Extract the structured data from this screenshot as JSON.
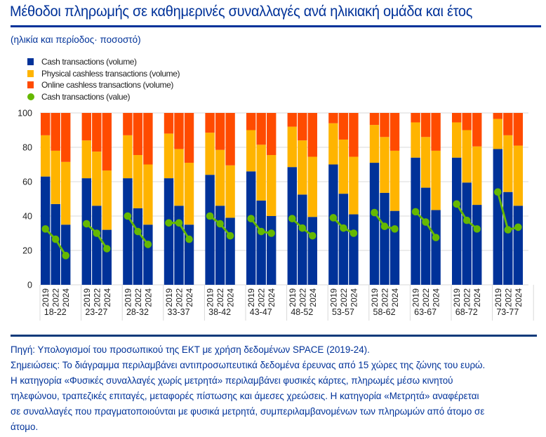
{
  "header": {
    "title": "Μέθοδοι πληρωμής σε καθημερινές συναλλαγές ανά ηλικιακή ομάδα και έτος",
    "subtitle": "(ηλικία και περίοδος· ποσοστό)"
  },
  "colors": {
    "cash_volume": "#003299",
    "physical_cashless": "#FFB400",
    "online_cashless": "#FF4B00",
    "cash_value": "#65B800",
    "accent": "#003299"
  },
  "legend": [
    {
      "label": "Cash transactions (volume)",
      "marker": "square",
      "color": "#003299"
    },
    {
      "label": "Physical cashless transactions (volume)",
      "marker": "square",
      "color": "#FFB400"
    },
    {
      "label": "Online cashless transactions (volume)",
      "marker": "square",
      "color": "#FF4B00"
    },
    {
      "label": "Cash transactions (value)",
      "marker": "dot",
      "color": "#65B800"
    }
  ],
  "chart_data": {
    "type": "bar",
    "stacked": true,
    "title": "Μέθοδοι πληρωμής σε καθημερινές συναλλαγές ανά ηλικιακή ομάδα και έτος",
    "subtitle": "(ηλικία και περίοδος· ποσοστό)",
    "xlabel": "",
    "ylabel": "",
    "ylim": [
      0,
      100
    ],
    "yticks": [
      0,
      20,
      40,
      60,
      80,
      100
    ],
    "grid": true,
    "legend_position": "top-left",
    "groups": [
      "18-22",
      "23-27",
      "28-32",
      "33-37",
      "38-42",
      "43-47",
      "48-52",
      "53-57",
      "58-62",
      "63-67",
      "68-72",
      "73-77"
    ],
    "years": [
      "2019",
      "2022",
      "2024"
    ],
    "series": [
      {
        "name": "Cash transactions (volume)",
        "kind": "bar",
        "values": [
          [
            63,
            47,
            35
          ],
          [
            62,
            46,
            32
          ],
          [
            62,
            44.5,
            35
          ],
          [
            62,
            46,
            35
          ],
          [
            64,
            46,
            39
          ],
          [
            66,
            49,
            40
          ],
          [
            68.5,
            52.5,
            39.5
          ],
          [
            70,
            53,
            41
          ],
          [
            71,
            53.5,
            43
          ],
          [
            74,
            56.5,
            43.5
          ],
          [
            74,
            59.5,
            46.5
          ],
          [
            79,
            54,
            46
          ]
        ]
      },
      {
        "name": "Physical cashless transactions (volume)",
        "kind": "bar",
        "values": [
          [
            24,
            31,
            36.5
          ],
          [
            22,
            31.5,
            34.5
          ],
          [
            25,
            31,
            35
          ],
          [
            26,
            33,
            36
          ],
          [
            24.5,
            32.5,
            30.5
          ],
          [
            24,
            32.5,
            35.5
          ],
          [
            23.5,
            31.5,
            35
          ],
          [
            24,
            31.5,
            33.5
          ],
          [
            22,
            32.5,
            35
          ],
          [
            20.5,
            29.5,
            34.5
          ],
          [
            20.5,
            30.5,
            34
          ],
          [
            17.5,
            33,
            35
          ]
        ]
      },
      {
        "name": "Online cashless transactions (volume)",
        "kind": "bar",
        "values": [
          [
            13,
            22,
            28.5
          ],
          [
            16,
            22.5,
            33.5
          ],
          [
            13,
            24.5,
            30
          ],
          [
            12,
            21,
            29
          ],
          [
            11.5,
            21.5,
            30.5
          ],
          [
            10,
            18.5,
            24.5
          ],
          [
            8,
            16,
            25.5
          ],
          [
            6,
            15.5,
            25.5
          ],
          [
            7,
            14,
            22
          ],
          [
            5.5,
            14,
            22
          ],
          [
            5.5,
            10,
            19.5
          ],
          [
            3.5,
            13,
            19
          ]
        ]
      },
      {
        "name": "Cash transactions (value)",
        "kind": "line-markers",
        "values": [
          [
            32.5,
            26.5,
            17
          ],
          [
            35.5,
            30,
            21
          ],
          [
            40,
            31,
            23.5
          ],
          [
            36,
            36,
            26.5
          ],
          [
            40,
            35.5,
            28.5
          ],
          [
            38.5,
            31,
            30
          ],
          [
            38.5,
            33,
            28.5
          ],
          [
            39,
            33,
            30
          ],
          [
            42,
            34,
            32.5
          ],
          [
            42.5,
            36.5,
            27.5
          ],
          [
            47,
            37.5,
            32.5
          ],
          [
            54,
            32,
            33.5
          ]
        ]
      }
    ]
  },
  "footer": {
    "source": "Πηγή: Υπολογισμοί του προσωπικού της ΕΚΤ με χρήση δεδομένων SPACE (2019-24).",
    "notes_lines": [
      "Σημειώσεις: Το διάγραμμα περιλαμβάνει αντιπροσωπευτικά δεδομένα έρευνας από 15 χώρες της ζώνης του ευρώ.",
      "Η κατηγορία «Φυσικές συναλλαγές χωρίς μετρητά» περιλαμβάνει φυσικές κάρτες, πληρωμές μέσω κινητού",
      "τηλεφώνου, τραπεζικές επιταγές, μεταφορές πίστωσης και άμεσες χρεώσεις. Η κατηγορία «Μετρητά» αναφέρεται",
      "σε συναλλαγές που πραγματοποιούνται με φυσικά μετρητά, συμπεριλαμβανομένων των πληρωμών από άτομο σε",
      "άτομο."
    ]
  }
}
